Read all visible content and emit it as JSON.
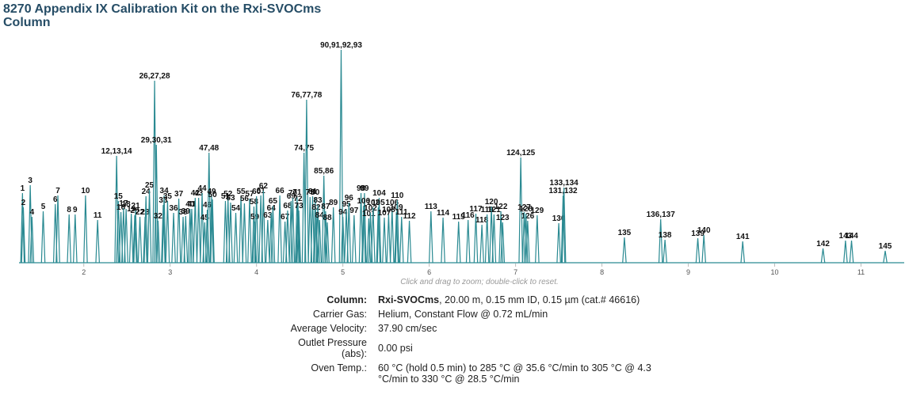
{
  "chart_data": {
    "type": "chromatogram",
    "title": "8270 Appendix IX Calibration Kit on the Rxi-SVOCms Column",
    "hint": "Click and drag to zoom; double-click to reset.",
    "color": "#2a8a92",
    "xlim": [
      1.25,
      11.5
    ],
    "xticks": [
      2,
      3,
      4,
      5,
      6,
      7,
      8,
      9,
      10,
      11
    ],
    "ylim": [
      0,
      280
    ],
    "peak_labels": [
      "1",
      "2",
      "3",
      "4",
      "5",
      "6",
      "7",
      "8",
      "9",
      "10",
      "11",
      "12,13,14",
      "15",
      "16",
      "17",
      "18",
      "19",
      "20",
      "21",
      "22",
      "23",
      "24",
      "25",
      "26,27,28",
      "29,30,31",
      "32",
      "33",
      "34",
      "35",
      "36",
      "37",
      "38",
      "39",
      "40",
      "41",
      "42",
      "43",
      "44",
      "45",
      "46",
      "47,48",
      "49",
      "50",
      "51",
      "52",
      "53",
      "54",
      "55",
      "56",
      "57",
      "58",
      "59",
      "60",
      "61",
      "62",
      "63",
      "64",
      "65",
      "66",
      "67",
      "68",
      "69",
      "70",
      "71",
      "72",
      "73",
      "74,75",
      "76,77,78",
      "79",
      "80",
      "81",
      "82",
      "83",
      "84",
      "85,86",
      "87",
      "88",
      "89",
      "90,91,92,93",
      "94",
      "95",
      "96",
      "97",
      "98",
      "99",
      "100",
      "101",
      "102",
      "103",
      "104",
      "105",
      "106",
      "107",
      "108",
      "109",
      "110",
      "111",
      "112",
      "113",
      "114",
      "115",
      "116",
      "117",
      "118",
      "119",
      "120",
      "121",
      "122",
      "123",
      "124,125",
      "126",
      "127",
      "128",
      "129",
      "130",
      "131,132",
      "133,134",
      "135",
      "136,137",
      "138",
      "139",
      "140",
      "141",
      "142",
      "143",
      "144",
      "145"
    ],
    "x": [
      1.29,
      1.3,
      1.38,
      1.4,
      1.53,
      1.67,
      1.7,
      1.83,
      1.9,
      2.02,
      2.16,
      2.38,
      2.4,
      2.43,
      2.46,
      2.49,
      2.55,
      2.59,
      2.6,
      2.65,
      2.71,
      2.72,
      2.76,
      2.82,
      2.84,
      2.86,
      2.92,
      2.93,
      2.97,
      3.04,
      3.1,
      3.15,
      3.18,
      3.23,
      3.25,
      3.29,
      3.33,
      3.37,
      3.4,
      3.43,
      3.45,
      3.48,
      3.49,
      3.64,
      3.67,
      3.7,
      3.76,
      3.82,
      3.86,
      3.92,
      3.97,
      3.98,
      4.0,
      4.05,
      4.08,
      4.13,
      4.17,
      4.19,
      4.27,
      4.33,
      4.36,
      4.4,
      4.42,
      4.47,
      4.48,
      4.49,
      4.55,
      4.58,
      4.62,
      4.68,
      4.65,
      4.69,
      4.71,
      4.73,
      4.78,
      4.8,
      4.82,
      4.89,
      4.98,
      5.0,
      5.04,
      5.07,
      5.13,
      5.21,
      5.25,
      5.24,
      5.3,
      5.32,
      5.35,
      5.42,
      5.41,
      5.57,
      5.48,
      5.53,
      5.62,
      5.63,
      5.68,
      5.77,
      6.02,
      6.16,
      6.34,
      6.45,
      6.54,
      6.61,
      6.67,
      6.72,
      6.75,
      6.83,
      6.85,
      7.06,
      7.14,
      7.1,
      7.12,
      7.25,
      7.5,
      7.55,
      7.56,
      8.26,
      8.68,
      8.73,
      9.11,
      9.18,
      9.63,
      10.56,
      10.82,
      10.89,
      11.28
    ],
    "values": [
      88,
      70,
      98,
      58,
      65,
      74,
      85,
      61,
      61,
      85,
      54,
      135,
      78,
      64,
      69,
      68,
      62,
      60,
      66,
      58,
      58,
      84,
      92,
      230,
      149,
      53,
      73,
      85,
      78,
      63,
      81,
      58,
      59,
      68,
      68,
      82,
      82,
      88,
      51,
      67,
      139,
      84,
      80,
      78,
      81,
      76,
      63,
      84,
      75,
      81,
      71,
      52,
      84,
      85,
      91,
      54,
      63,
      72,
      85,
      52,
      66,
      78,
      82,
      83,
      75,
      66,
      139,
      206,
      83,
      83,
      84,
      64,
      73,
      54,
      110,
      65,
      51,
      70,
      269,
      58,
      68,
      76,
      60,
      88,
      88,
      72,
      56,
      63,
      70,
      82,
      70,
      70,
      57,
      61,
      64,
      79,
      58,
      53,
      65,
      57,
      52,
      54,
      62,
      48,
      61,
      71,
      61,
      65,
      51,
      133,
      53,
      64,
      62,
      60,
      50,
      85,
      95,
      32,
      55,
      29,
      31,
      35,
      27,
      18,
      28,
      28,
      15
    ]
  },
  "method": {
    "rows": [
      {
        "label": "Column:",
        "value_strong": "Rxi-SVOCms",
        "value": ", 20.00 m, 0.15 mm ID, 0.15 µm (cat.# 46616)"
      },
      {
        "label": "Carrier Gas:",
        "value": "Helium, Constant Flow @ 0.72 mL/min"
      },
      {
        "label": "Average Velocity:",
        "value": "37.90 cm/sec"
      },
      {
        "label": "Outlet Pressure (abs):",
        "value": "0.00 psi"
      },
      {
        "label": "Oven Temp.:",
        "value": "60 °C (hold 0.5 min) to 285 °C @ 35.6 °C/min to 305 °C @ 4.3 °C/min to 330 °C @ 28.5 °C/min"
      }
    ]
  }
}
